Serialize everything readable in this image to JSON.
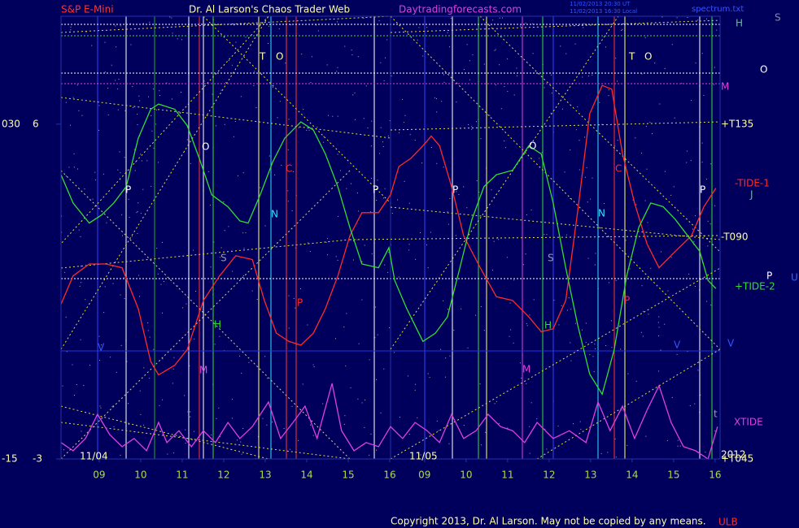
{
  "chart_data": {
    "type": "line",
    "symbol": "S&P E-Mini",
    "title": "Dr. Al Larson's Chaos Trader Web",
    "site": "Daytradingforecasts.com",
    "timestamps": [
      "11/02/2013 20:30 UT",
      "11/02/2013 16:30 Local"
    ],
    "file": "spectrum.txt",
    "copyright": "Copyright 2013, Dr. Al Larson. May not be copied by any means.",
    "xlim": [
      -0.92,
      14.96
    ],
    "xticks": [
      {
        "value": 0,
        "label": "09"
      },
      {
        "value": 1,
        "label": "10"
      },
      {
        "value": 2,
        "label": "11"
      },
      {
        "value": 3,
        "label": "12"
      },
      {
        "value": 4,
        "label": "13"
      },
      {
        "value": 5,
        "label": "14"
      },
      {
        "value": 6,
        "label": "15"
      },
      {
        "value": 7,
        "label": "16"
      },
      {
        "value": 7.84,
        "label": "09"
      },
      {
        "value": 8.84,
        "label": "10"
      },
      {
        "value": 9.84,
        "label": "11"
      },
      {
        "value": 10.84,
        "label": "12"
      },
      {
        "value": 11.84,
        "label": "13"
      },
      {
        "value": 12.84,
        "label": "14"
      },
      {
        "value": 13.84,
        "label": "15"
      },
      {
        "value": 14.84,
        "label": "16"
      }
    ],
    "date_labels": [
      "11/04",
      "11/05"
    ],
    "ylim": [
      -15,
      44.5
    ],
    "yticks": [
      {
        "value": 30,
        "label": "030"
      },
      -15
    ],
    "y2lim": [
      -3,
      8.9
    ],
    "y2ticks": [
      6,
      -3
    ],
    "series": [
      {
        "name": "-TIDE-1",
        "color": "#ff2a2a",
        "x": [
          -0.92,
          -0.63,
          -0.24,
          0.16,
          0.55,
          0.94,
          1.24,
          1.43,
          1.82,
          2.12,
          2.51,
          2.9,
          3.29,
          3.69,
          3.98,
          4.27,
          4.57,
          4.86,
          5.16,
          5.45,
          5.75,
          6.04,
          6.33,
          6.73,
          7.02,
          7.22,
          7.51,
          7.8,
          8.0,
          8.2,
          8.49,
          8.78,
          9.18,
          9.57,
          9.96,
          10.35,
          10.65,
          10.94,
          11.24,
          11.53,
          11.82,
          12.12,
          12.35,
          12.61,
          12.9,
          13.2,
          13.49,
          13.88,
          14.27,
          14.57,
          14.86
        ],
        "values": [
          5.8,
          9.6,
          11.2,
          11.2,
          10.7,
          5.2,
          -1.9,
          -3.7,
          -2.4,
          -0.3,
          6.3,
          9.6,
          12.3,
          11.8,
          6.3,
          1.9,
          0.8,
          0.3,
          1.9,
          5.2,
          9.6,
          15.0,
          18.1,
          18.1,
          20.5,
          24.3,
          25.4,
          27.1,
          28.4,
          27.1,
          21.6,
          15.0,
          10.7,
          6.8,
          6.3,
          4.1,
          2.1,
          2.5,
          6.3,
          18.3,
          31.4,
          35.2,
          34.7,
          26.0,
          19.4,
          13.9,
          10.7,
          12.9,
          15.0,
          18.9,
          21.4
        ]
      },
      {
        "name": "+TIDE-2",
        "color": "#33dd33",
        "x": [
          -0.92,
          -0.63,
          -0.24,
          0.06,
          0.35,
          0.65,
          0.94,
          1.24,
          1.43,
          1.82,
          2.12,
          2.41,
          2.71,
          3.1,
          3.39,
          3.59,
          3.88,
          4.18,
          4.47,
          4.86,
          5.16,
          5.45,
          5.75,
          6.04,
          6.33,
          6.73,
          6.98,
          7.12,
          7.41,
          7.8,
          8.1,
          8.39,
          8.69,
          8.98,
          9.27,
          9.57,
          9.96,
          10.35,
          10.65,
          10.94,
          11.24,
          11.53,
          11.82,
          12.12,
          12.41,
          12.71,
          13.0,
          13.29,
          13.59,
          13.88,
          14.18,
          14.47,
          14.67,
          14.86
        ],
        "values": [
          23.2,
          19.4,
          16.7,
          17.8,
          19.4,
          21.6,
          28.1,
          32.0,
          32.7,
          32.0,
          29.8,
          25.4,
          20.5,
          18.9,
          17.0,
          16.7,
          20.5,
          24.9,
          28.1,
          30.3,
          29.2,
          26.0,
          21.6,
          16.1,
          11.2,
          10.7,
          13.4,
          9.0,
          5.2,
          0.8,
          1.9,
          4.1,
          10.7,
          17.2,
          21.6,
          23.2,
          23.8,
          27.1,
          26.0,
          19.4,
          10.7,
          3.0,
          -3.6,
          -6.3,
          -0.3,
          9.6,
          16.1,
          19.4,
          18.9,
          17.2,
          15.0,
          12.9,
          9.0,
          7.9
        ]
      },
      {
        "name": "XTIDE",
        "color": "#e040e0",
        "axis": "y2",
        "x": [
          -0.92,
          -0.63,
          -0.33,
          -0.04,
          0.25,
          0.55,
          0.84,
          1.14,
          1.43,
          1.63,
          1.92,
          2.22,
          2.51,
          2.8,
          3.1,
          3.39,
          3.69,
          4.08,
          4.37,
          4.67,
          4.96,
          5.25,
          5.61,
          5.84,
          6.14,
          6.43,
          6.73,
          7.02,
          7.31,
          7.61,
          7.9,
          8.2,
          8.49,
          8.78,
          9.08,
          9.37,
          9.67,
          9.96,
          10.25,
          10.55,
          10.94,
          11.33,
          11.73,
          12.02,
          12.31,
          12.61,
          12.9,
          13.2,
          13.49,
          13.78,
          14.08,
          14.37,
          14.67,
          14.9
        ],
        "values": [
          -2.56,
          -2.78,
          -2.45,
          -1.8,
          -2.34,
          -2.67,
          -2.45,
          -2.78,
          -2.02,
          -2.56,
          -2.24,
          -2.67,
          -2.24,
          -2.56,
          -2.02,
          -2.45,
          -2.13,
          -1.47,
          -2.45,
          -2.02,
          -1.58,
          -2.45,
          -0.97,
          -2.24,
          -2.78,
          -2.56,
          -2.67,
          -2.13,
          -2.45,
          -2.02,
          -2.24,
          -2.56,
          -1.8,
          -2.45,
          -2.24,
          -1.8,
          -2.13,
          -2.24,
          -2.56,
          -2.02,
          -2.45,
          -2.24,
          -2.56,
          -1.47,
          -2.24,
          -1.58,
          -2.45,
          -1.69,
          -1.03,
          -2.02,
          -2.67,
          -2.78,
          -3.0,
          -2.13
        ]
      }
    ],
    "level_labels": [
      {
        "text": "H",
        "color": "#44dd44"
      },
      {
        "text": "M",
        "color": "#e040e0"
      },
      {
        "text": "+T135",
        "color": "#ffffaa"
      },
      {
        "text": "J",
        "color": "#44dd44"
      },
      {
        "text": "-T090",
        "color": "#ffffaa"
      },
      {
        "text": "V",
        "color": "#3355ff"
      },
      {
        "text": "2012",
        "color": "#ffffaa"
      },
      {
        "text": "+T045",
        "color": "#ffffaa"
      },
      {
        "text": "S",
        "color": "#8888aa"
      },
      {
        "text": "O",
        "color": "#ffffff"
      },
      {
        "text": "P",
        "color": "#ffffff"
      },
      {
        "text": "U",
        "color": "#3366ff"
      },
      {
        "text": "ULB",
        "color": "#ff2a2a"
      }
    ],
    "annotations": [
      {
        "text": "T",
        "color": "#ffffaa"
      },
      {
        "text": "O",
        "color": "#ffffaa"
      },
      {
        "text": "T",
        "color": "#ffffaa"
      },
      {
        "text": "O",
        "color": "#ffffaa"
      },
      {
        "text": "O",
        "color": "#ffffff"
      },
      {
        "text": "O",
        "color": "#ffffff"
      },
      {
        "text": "P",
        "color": "#ffffff"
      },
      {
        "text": "P",
        "color": "#ffffff"
      },
      {
        "text": "P",
        "color": "#ffffff"
      },
      {
        "text": "P",
        "color": "#ffffff"
      },
      {
        "text": "N",
        "color": "#33ddff"
      },
      {
        "text": "N",
        "color": "#33ddff"
      },
      {
        "text": "C",
        "color": "#ff2a2a"
      },
      {
        "text": "C",
        "color": "#ff2a2a"
      },
      {
        "text": "S",
        "color": "#9999bb"
      },
      {
        "text": "S",
        "color": "#9999bb"
      },
      {
        "text": "P",
        "color": "#ff2a2a"
      },
      {
        "text": "P",
        "color": "#ff2a2a"
      },
      {
        "text": "H",
        "color": "#33dd33"
      },
      {
        "text": "H",
        "color": "#33dd33"
      },
      {
        "text": "M",
        "color": "#e040e0"
      },
      {
        "text": "M",
        "color": "#e040e0"
      },
      {
        "text": "V",
        "color": "#3355ff"
      },
      {
        "text": "V",
        "color": "#3355ff"
      },
      {
        "text": "t",
        "color": "#9999bb"
      },
      {
        "text": "t",
        "color": "#9999bb"
      }
    ]
  }
}
